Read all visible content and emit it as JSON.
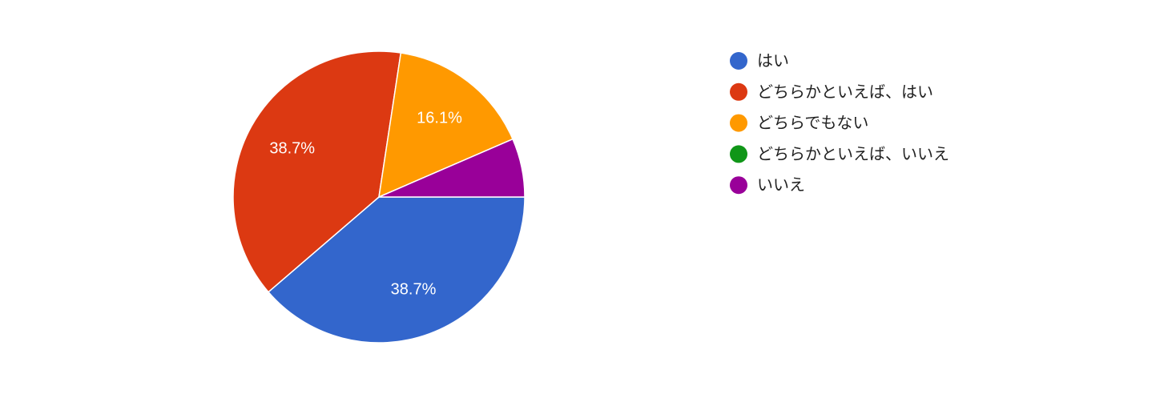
{
  "chart_data": {
    "type": "pie",
    "categories": [
      "はい",
      "どちらかといえば、はい",
      "どちらでもない",
      "どちらかといえば、いいえ",
      "いいえ"
    ],
    "values": [
      38.7,
      38.7,
      16.1,
      0,
      6.5
    ],
    "value_labels": [
      "38.7%",
      "38.7%",
      "16.1%",
      null,
      null
    ],
    "colors": [
      "#3366cc",
      "#dc3912",
      "#ff9900",
      "#109618",
      "#990099"
    ],
    "legend": "right"
  }
}
